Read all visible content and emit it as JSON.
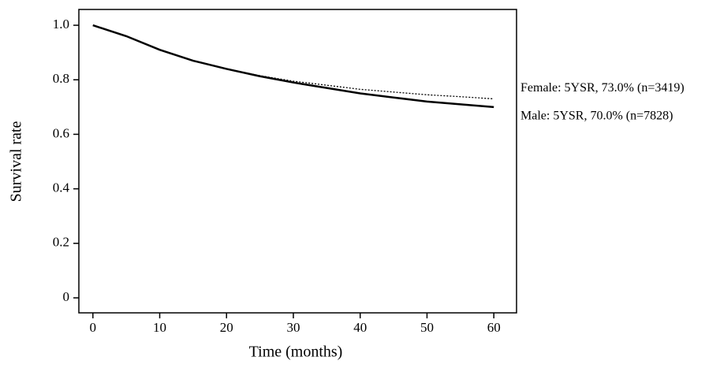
{
  "chart_data": {
    "type": "line",
    "x_label": "Time (months)",
    "y_label": "Survival rate",
    "x": [
      0,
      5,
      10,
      15,
      20,
      25,
      30,
      35,
      40,
      45,
      50,
      55,
      60
    ],
    "series": [
      {
        "name": "Female: 5YSR, 73.0% (n=3419)",
        "color": "#000000",
        "style": "dotted",
        "values": [
          1.0,
          0.96,
          0.91,
          0.87,
          0.84,
          0.815,
          0.795,
          0.78,
          0.765,
          0.755,
          0.745,
          0.738,
          0.73
        ]
      },
      {
        "name": "Male: 5YSR, 70.0% (n=7828)",
        "color": "#000000",
        "style": "solid",
        "values": [
          1.0,
          0.96,
          0.91,
          0.87,
          0.84,
          0.813,
          0.79,
          0.77,
          0.75,
          0.735,
          0.72,
          0.71,
          0.7
        ]
      }
    ],
    "xlim": [
      -2.1,
      63.4
    ],
    "ylim": [
      -0.055,
      1.058
    ],
    "xticks": [
      0,
      10,
      20,
      30,
      40,
      50,
      60
    ],
    "yticks": [
      0,
      0.2,
      0.4,
      0.6,
      0.8,
      {
        "value": 1,
        "label": "1.0"
      }
    ]
  }
}
